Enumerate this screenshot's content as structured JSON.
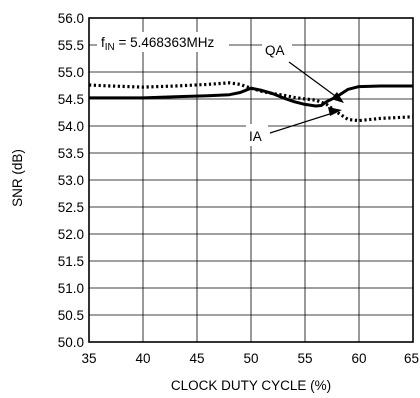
{
  "chart_data": {
    "type": "line",
    "title": "",
    "xlabel": "CLOCK DUTY CYCLE (%)",
    "ylabel": "SNR (dB)",
    "xlim": [
      35,
      65
    ],
    "ylim": [
      50.0,
      56.0
    ],
    "x_ticks": [
      35,
      40,
      45,
      50,
      55,
      60,
      65
    ],
    "x_tick_labels": [
      "35",
      "40",
      "45",
      "50",
      "55",
      "60",
      "65"
    ],
    "y_ticks": [
      50.0,
      50.5,
      51.0,
      51.5,
      52.0,
      52.5,
      53.0,
      53.5,
      54.0,
      54.5,
      55.0,
      55.5,
      56.0
    ],
    "y_tick_labels": [
      "50.0",
      "50.5",
      "51.0",
      "51.5",
      "52.0",
      "52.5",
      "53.0",
      "53.5",
      "54.0",
      "54.5",
      "55.0",
      "55.5",
      "56.0"
    ],
    "grid": true,
    "annotation_parts": {
      "prefix": "f",
      "subscript": "IN",
      "suffix": " = 5.468363MHz"
    },
    "series": [
      {
        "name": "QA",
        "style": "solid",
        "color": "#000000",
        "x": [
          35,
          37,
          40,
          43,
          46,
          48,
          49,
          50,
          51,
          52,
          53,
          54,
          55,
          56,
          56.5,
          57,
          58,
          59,
          60,
          62,
          65
        ],
        "y": [
          54.52,
          54.52,
          54.52,
          54.54,
          54.56,
          54.58,
          54.62,
          54.7,
          54.66,
          54.6,
          54.52,
          54.45,
          54.4,
          54.37,
          54.38,
          54.45,
          54.55,
          54.68,
          54.73,
          54.74,
          54.74
        ]
      },
      {
        "name": "IA",
        "style": "dotted",
        "color": "#000000",
        "x": [
          35,
          37,
          40,
          43,
          46,
          48,
          49,
          50,
          51,
          52,
          53,
          54,
          55,
          56,
          57,
          58,
          59,
          60,
          62,
          65
        ],
        "y": [
          54.76,
          54.74,
          54.72,
          54.74,
          54.77,
          54.8,
          54.77,
          54.7,
          54.64,
          54.6,
          54.57,
          54.53,
          54.5,
          54.48,
          54.4,
          54.25,
          54.12,
          54.1,
          54.14,
          54.17
        ]
      }
    ]
  }
}
